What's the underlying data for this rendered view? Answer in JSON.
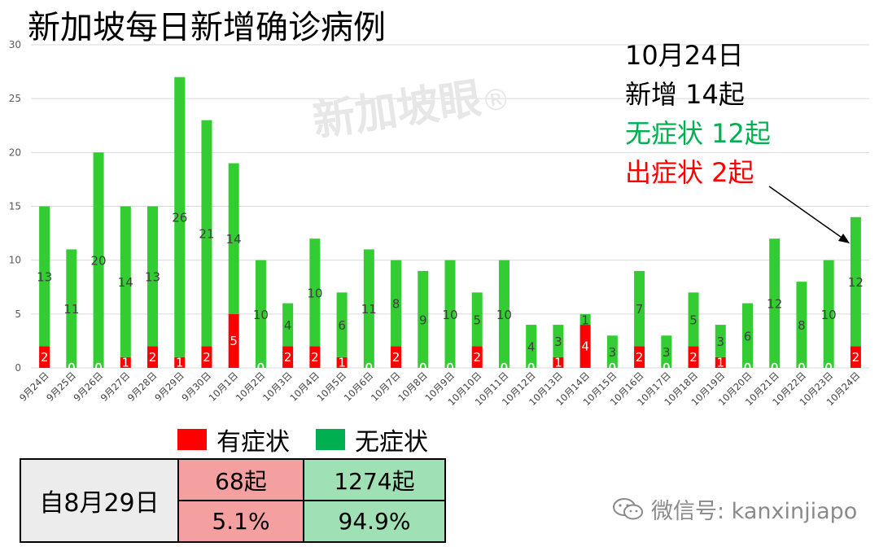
{
  "title": "新加坡每日新增确诊病例",
  "watermark": {
    "text": "新加坡眼",
    "mark": "®"
  },
  "callout": {
    "date": "10月24日",
    "total": "新增 14起",
    "asymptomatic": "无症状 12起",
    "symptomatic": "出症状 2起"
  },
  "legend": {
    "symptomatic": "有症状",
    "asymptomatic": "无症状"
  },
  "summary": {
    "label": "自8月29日",
    "symptomatic_count": "68起",
    "asymptomatic_count": "1274起",
    "symptomatic_pct": "5.1%",
    "asymptomatic_pct": "94.9%"
  },
  "footer": {
    "wechat": "微信号: kanxinjiapo",
    "icon": "wechat-icon"
  },
  "colors": {
    "symptomatic": "#ff0000",
    "asymptomatic": "#33cc33",
    "legend_asymptomatic": "#00b050",
    "grid": "#d9d9d9"
  },
  "chart_data": {
    "type": "bar",
    "stacked": true,
    "ylim": [
      0,
      30
    ],
    "yticks": [
      0,
      5,
      10,
      15,
      20,
      25,
      30
    ],
    "grid": true,
    "legend_position": "bottom",
    "categories": [
      "9月24日",
      "9月25日",
      "9月26日",
      "9月27日",
      "9月28日",
      "9月29日",
      "9月30日",
      "10月1日",
      "10月2日",
      "10月3日",
      "10月4日",
      "10月5日",
      "10月6日",
      "10月7日",
      "10月8日",
      "10月9日",
      "10月10日",
      "10月11日",
      "10月12日",
      "10月13日",
      "10月14日",
      "10月15日",
      "10月16日",
      "10月17日",
      "10月18日",
      "10月19日",
      "10月20日",
      "10月21日",
      "10月22日",
      "10月23日",
      "10月24日"
    ],
    "series": [
      {
        "name": "有症状",
        "values": [
          2,
          0,
          0,
          1,
          2,
          1,
          2,
          5,
          0,
          2,
          2,
          1,
          0,
          2,
          0,
          0,
          2,
          0,
          0,
          1,
          4,
          0,
          2,
          0,
          2,
          1,
          0,
          0,
          0,
          0,
          2
        ]
      },
      {
        "name": "无症状",
        "values": [
          13,
          11,
          20,
          14,
          13,
          26,
          21,
          14,
          10,
          4,
          10,
          6,
          11,
          8,
          9,
          10,
          5,
          10,
          4,
          3,
          1,
          3,
          7,
          3,
          5,
          3,
          6,
          12,
          8,
          10,
          12
        ]
      }
    ]
  }
}
